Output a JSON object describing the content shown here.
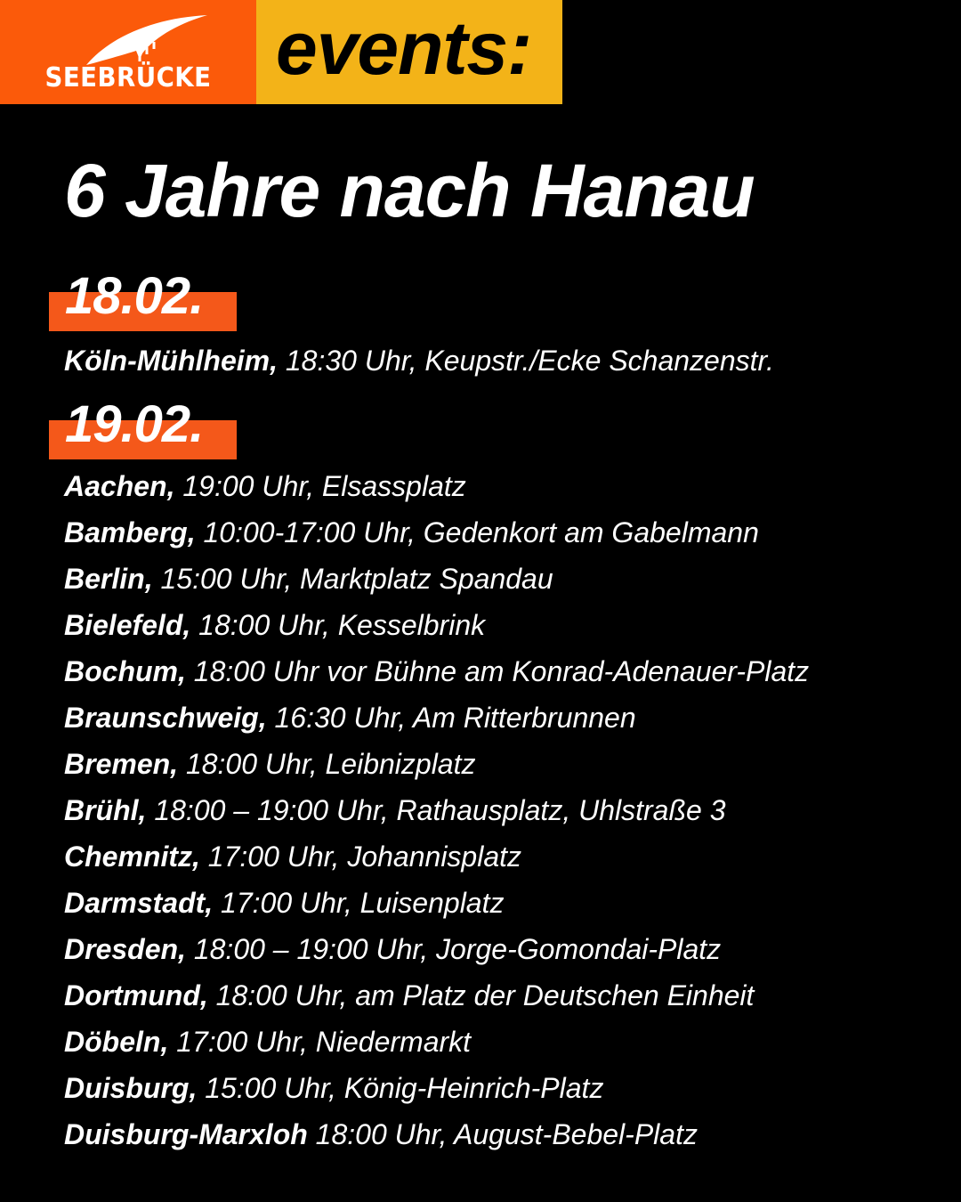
{
  "header": {
    "logo_text": "SEEBRÜCKE",
    "events_label": "events:",
    "colors": {
      "orange": "#fb5a0a",
      "yellow": "#f3b318",
      "background": "#000000"
    }
  },
  "title": "6 Jahre nach Hanau",
  "days": [
    {
      "date": "18.02.",
      "events": [
        {
          "city": "Köln-Mühlheim,",
          "details": "18:30 Uhr, Keupstr./Ecke Schanzenstr."
        }
      ]
    },
    {
      "date": "19.02.",
      "events": [
        {
          "city": "Aachen,",
          "details": "19:00 Uhr, Elsassplatz"
        },
        {
          "city": "Bamberg,",
          "details": "10:00-17:00 Uhr, Gedenkort am Gabelmann"
        },
        {
          "city": "Berlin,",
          "details": "15:00 Uhr, Marktplatz Spandau"
        },
        {
          "city": "Bielefeld,",
          "details": "18:00 Uhr, Kesselbrink"
        },
        {
          "city": "Bochum,",
          "details": "18:00 Uhr vor Bühne am Konrad-Adenauer-Platz"
        },
        {
          "city": "Braunschweig,",
          "details": "16:30 Uhr, Am Ritterbrunnen"
        },
        {
          "city": "Bremen,",
          "details": "18:00 Uhr, Leibnizplatz"
        },
        {
          "city": "Brühl,",
          "details": "18:00 – 19:00 Uhr, Rathausplatz, Uhlstraße 3"
        },
        {
          "city": "Chemnitz,",
          "details": "17:00 Uhr, Johannisplatz"
        },
        {
          "city": "Darmstadt,",
          "details": "17:00 Uhr, Luisenplatz"
        },
        {
          "city": "Dresden,",
          "details": "18:00 – 19:00 Uhr, Jorge-Gomondai-Platz"
        },
        {
          "city": "Dortmund,",
          "details": "18:00 Uhr, am Platz der Deutschen Einheit"
        },
        {
          "city": "Döbeln,",
          "details": "17:00 Uhr, Niedermarkt"
        },
        {
          "city": "Duisburg,",
          "details": "15:00 Uhr, König-Heinrich-Platz"
        },
        {
          "city": "Duisburg-Marxloh",
          "details": "18:00 Uhr, August-Bebel-Platz"
        }
      ]
    }
  ]
}
